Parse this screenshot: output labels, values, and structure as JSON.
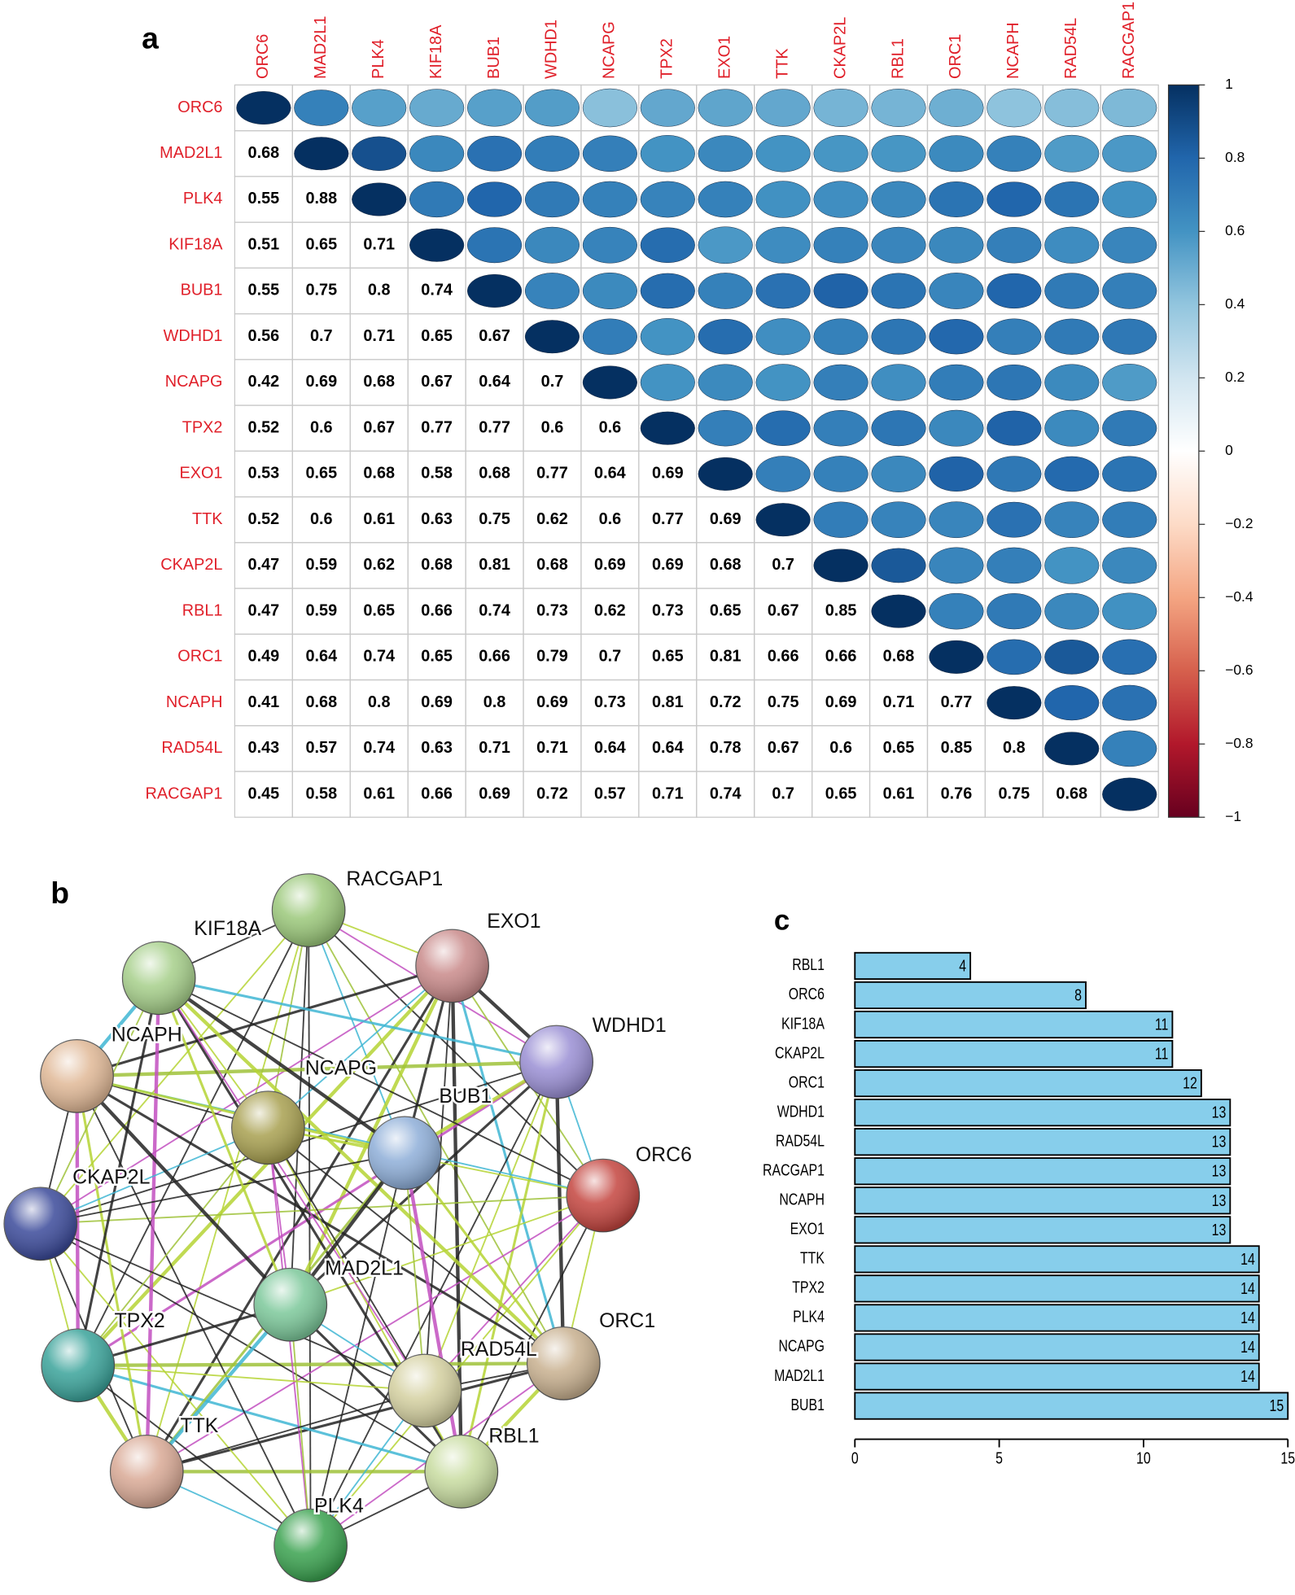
{
  "chart_data": [
    {
      "type": "corrplot",
      "panel_label": "a",
      "variables": [
        "ORC6",
        "MAD2L1",
        "PLK4",
        "KIF18A",
        "BUB1",
        "WDHD1",
        "NCAPG",
        "TPX2",
        "EXO1",
        "TTK",
        "CKAP2L",
        "RBL1",
        "ORC1",
        "NCAPH",
        "RAD54L",
        "RACGAP1"
      ],
      "values": [
        [
          1
        ],
        [
          0.68,
          1
        ],
        [
          0.55,
          0.88,
          1
        ],
        [
          0.51,
          0.65,
          0.71,
          1
        ],
        [
          0.55,
          0.75,
          0.8,
          0.74,
          1
        ],
        [
          0.56,
          0.7,
          0.71,
          0.65,
          0.67,
          1
        ],
        [
          0.42,
          0.69,
          0.68,
          0.67,
          0.64,
          0.7,
          1
        ],
        [
          0.52,
          0.6,
          0.67,
          0.77,
          0.77,
          0.6,
          0.6,
          1
        ],
        [
          0.53,
          0.65,
          0.68,
          0.58,
          0.68,
          0.77,
          0.64,
          0.69,
          1
        ],
        [
          0.52,
          0.6,
          0.61,
          0.63,
          0.75,
          0.62,
          0.6,
          0.77,
          0.69,
          1
        ],
        [
          0.47,
          0.59,
          0.62,
          0.68,
          0.81,
          0.68,
          0.69,
          0.69,
          0.68,
          0.7,
          1
        ],
        [
          0.47,
          0.59,
          0.65,
          0.66,
          0.74,
          0.73,
          0.62,
          0.73,
          0.65,
          0.67,
          0.85,
          1
        ],
        [
          0.49,
          0.64,
          0.74,
          0.65,
          0.66,
          0.79,
          0.7,
          0.65,
          0.81,
          0.66,
          0.66,
          0.68,
          1
        ],
        [
          0.41,
          0.68,
          0.8,
          0.69,
          0.8,
          0.69,
          0.73,
          0.81,
          0.72,
          0.75,
          0.69,
          0.71,
          0.77,
          1
        ],
        [
          0.43,
          0.57,
          0.74,
          0.63,
          0.71,
          0.71,
          0.64,
          0.64,
          0.78,
          0.67,
          0.6,
          0.65,
          0.85,
          0.8,
          1
        ],
        [
          0.45,
          0.58,
          0.61,
          0.66,
          0.69,
          0.72,
          0.57,
          0.71,
          0.74,
          0.7,
          0.65,
          0.61,
          0.76,
          0.75,
          0.68,
          1
        ]
      ],
      "colorscale": [
        "#67001F",
        "#B2182B",
        "#D6604D",
        "#F4A582",
        "#FDDBC7",
        "#FFFFFF",
        "#D1E5F0",
        "#92C5DE",
        "#4393C3",
        "#2166AC",
        "#053061"
      ],
      "label_color": "#e0202a",
      "clim": [
        -1,
        1
      ],
      "cticks": [
        {
          "value": -1,
          "label": "−1"
        },
        {
          "value": -0.8,
          "label": "−0.8"
        },
        {
          "value": -0.6,
          "label": "−0.6"
        },
        {
          "value": -0.4,
          "label": "−0.4"
        },
        {
          "value": -0.2,
          "label": "−0.2"
        },
        0,
        0.2,
        0.4,
        0.6,
        0.8,
        1
      ]
    },
    {
      "type": "network",
      "panel_label": "b",
      "nodes": [
        {
          "label": "RACGAP1",
          "color": "#9bc87a"
        },
        {
          "label": "EXO1",
          "color": "#c98a8a"
        },
        {
          "label": "WDHD1",
          "color": "#9a8fd4"
        },
        {
          "label": "ORC6",
          "color": "#c4453f"
        },
        {
          "label": "ORC1",
          "color": "#c8b08f"
        },
        {
          "label": "RBL1",
          "color": "#c8dca0"
        },
        {
          "label": "PLK4",
          "color": "#3aa24f"
        },
        {
          "label": "TTK",
          "color": "#d9a995"
        },
        {
          "label": "TPX2",
          "color": "#3aa39a"
        },
        {
          "label": "CKAP2L",
          "color": "#3b4a9a"
        },
        {
          "label": "NCAPH",
          "color": "#e0b896"
        },
        {
          "label": "KIF18A",
          "color": "#a6cf8a"
        },
        {
          "label": "NCAPG",
          "color": "#a8a050"
        },
        {
          "label": "BUB1",
          "color": "#8eaed8"
        },
        {
          "label": "MAD2L1",
          "color": "#7cc89a"
        },
        {
          "label": "RAD54L",
          "color": "#d4d0a0"
        }
      ]
    },
    {
      "type": "bar",
      "orientation": "horizontal",
      "panel_label": "c",
      "categories": [
        "RBL1",
        "ORC6",
        "KIF18A",
        "CKAP2L",
        "ORC1",
        "WDHD1",
        "RAD54L",
        "RACGAP1",
        "NCAPH",
        "EXO1",
        "TTK",
        "TPX2",
        "PLK4",
        "NCAPG",
        "MAD2L1",
        "BUB1"
      ],
      "values": [
        4,
        8,
        11,
        11,
        12,
        13,
        13,
        13,
        13,
        13,
        14,
        14,
        14,
        14,
        14,
        15
      ],
      "color": "#87ceeb",
      "xlim": [
        0,
        15
      ],
      "xticks": [
        0,
        5,
        10,
        15
      ]
    }
  ]
}
